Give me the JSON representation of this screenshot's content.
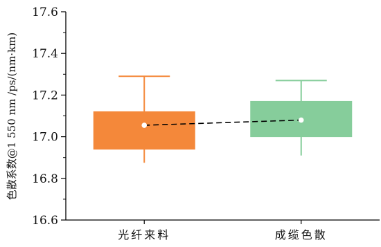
{
  "chart_data": {
    "type": "box",
    "ylabel": "色散系数@1 550 nm /ps/(nm·km)",
    "ylim": [
      16.6,
      17.6
    ],
    "yticks": [
      16.6,
      16.8,
      17.0,
      17.2,
      17.4,
      17.6
    ],
    "y_tick_labels": [
      "16.6",
      "16.8",
      "17.0",
      "17.2",
      "17.4",
      "17.6"
    ],
    "categories": [
      "光纤来料",
      "成缆色散"
    ],
    "boxes": [
      {
        "category": "光纤来料",
        "whisker_low": 16.875,
        "q1": 16.94,
        "q3": 17.12,
        "whisker_high": 17.29,
        "mean": 17.055,
        "color": "#F4883A"
      },
      {
        "category": "成缆色散",
        "whisker_low": 16.91,
        "q1": 17.0,
        "q3": 17.17,
        "whisker_high": 17.27,
        "mean": 17.08,
        "color": "#86CD9B"
      }
    ],
    "mean_line": {
      "style": "dashed",
      "color": "#000000"
    },
    "grid": false
  }
}
